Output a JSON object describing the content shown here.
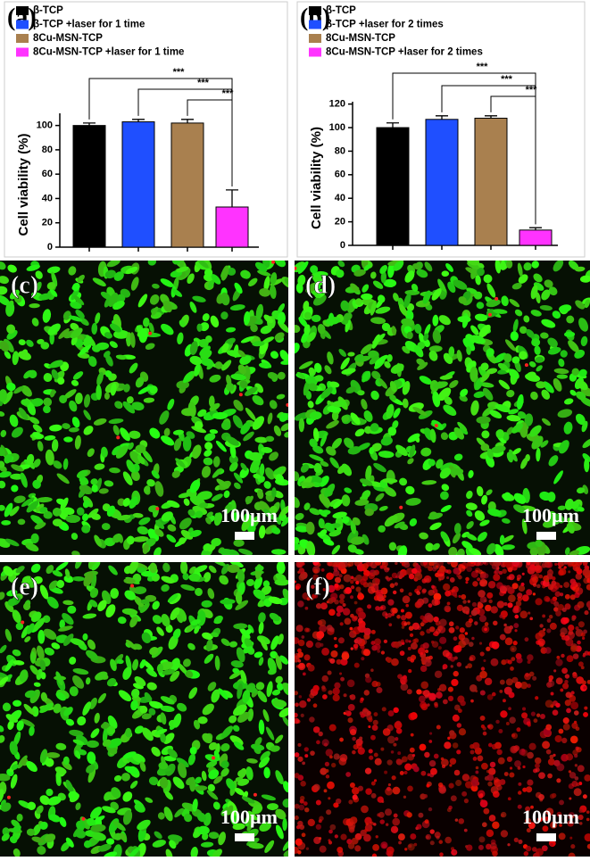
{
  "chart_data": [
    {
      "type": "bar",
      "panel_label": "(a)",
      "y_label": "Cell viability (%)",
      "categories": [
        "β-TCP",
        "β-TCP +laser for 1 time",
        "8Cu-MSN-TCP",
        "8Cu-MSN-TCP +laser for 1 time"
      ],
      "colors": [
        "#000000",
        "#1f4fff",
        "#a9804f",
        "#ff33ff"
      ],
      "values": [
        100,
        103,
        102,
        33
      ],
      "errors": [
        2,
        2,
        3,
        14
      ],
      "annotations": [
        "***",
        "***",
        "***"
      ],
      "ylim": [
        0,
        110
      ],
      "yticks": [
        0,
        20,
        40,
        60,
        80,
        100
      ]
    },
    {
      "type": "bar",
      "panel_label": "(b)",
      "y_label": "Cell viability (%)",
      "categories": [
        "β-TCP",
        "β-TCP +laser for 2 times",
        "8Cu-MSN-TCP",
        "8Cu-MSN-TCP +laser for 2 times"
      ],
      "colors": [
        "#000000",
        "#1f4fff",
        "#a9804f",
        "#ff33ff"
      ],
      "values": [
        100,
        107,
        108,
        13
      ],
      "errors": [
        4,
        3,
        2,
        2
      ],
      "annotations": [
        "***",
        "***",
        "***"
      ],
      "ylim": [
        0,
        122
      ],
      "yticks": [
        0,
        20,
        40,
        60,
        80,
        100,
        120
      ]
    }
  ],
  "panels": [
    {
      "label": "(c)",
      "scale": "100µm"
    },
    {
      "label": "(d)",
      "scale": "100µm"
    },
    {
      "label": "(e)",
      "scale": "100µm"
    },
    {
      "label": "(f)",
      "scale": "100µm"
    }
  ]
}
